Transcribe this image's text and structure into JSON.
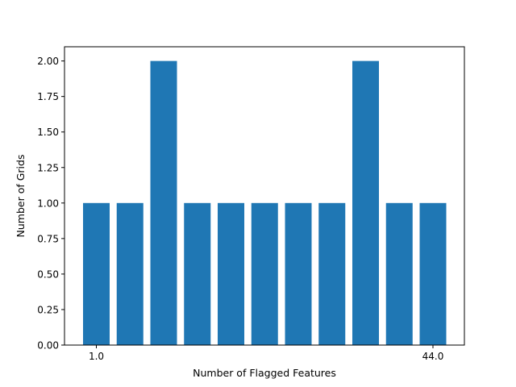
{
  "chart_data": {
    "type": "bar",
    "title": "",
    "xlabel": "Number of Flagged Features",
    "ylabel": "Number of Grids",
    "x_tick_labels": [
      "1.0",
      "44.0"
    ],
    "y_ticks": [
      "0.00",
      "0.25",
      "0.50",
      "0.75",
      "1.00",
      "1.25",
      "1.50",
      "1.75",
      "2.00"
    ],
    "ylim": [
      0,
      2.1
    ],
    "values": [
      1,
      1,
      2,
      1,
      1,
      1,
      1,
      1,
      2,
      1,
      1
    ],
    "bar_color": "#1f77b4",
    "grid": false,
    "legend": "none"
  }
}
